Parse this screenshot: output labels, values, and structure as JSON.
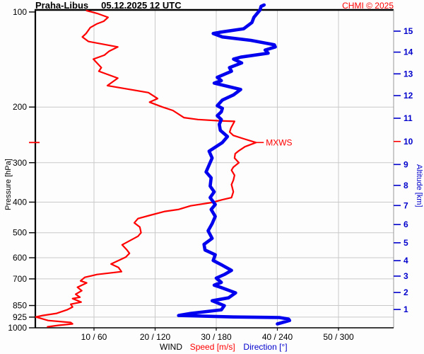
{
  "header": {
    "station": "Praha-Libus",
    "datetime": "05.12.2025 12 UTC",
    "copyright": "CHMI © 2025"
  },
  "legend": {
    "wind": "WIND",
    "speed": "Speed [m/s]",
    "direction": "Direction [°]"
  },
  "colors": {
    "speed_line": "#ff0000",
    "direction_line": "#0000ee",
    "pressure_text": "#000000",
    "altitude_text": "#0000cc",
    "grid": "#c9c9c9",
    "border": "#000000",
    "copyright": "#ff0000",
    "mxws": "#ff0000"
  },
  "chart_data": {
    "type": "line",
    "title": "Praha-Libus 05.12.2025 12 UTC",
    "ylabel": "Pressure [hPa]",
    "y2label": "Altitude [km]",
    "xlabel": "WIND Speed [m/s] / Direction [°]",
    "y_scale": "log-inverted",
    "x_tick_labels": [
      "10 / 60",
      "20 / 120",
      "30 / 180",
      "40 / 240",
      "50 / 300"
    ],
    "speed_ticks": [
      10,
      20,
      30,
      40,
      50
    ],
    "direction_ticks": [
      60,
      120,
      180,
      240,
      300
    ],
    "speed_range": [
      0,
      59
    ],
    "direction_range": [
      0,
      354
    ],
    "pressure_ticks": [
      100,
      200,
      300,
      400,
      500,
      600,
      700,
      850,
      925,
      1000
    ],
    "pressure_grid": [
      200,
      300,
      400,
      500,
      600,
      700,
      850,
      925
    ],
    "altitude_ticks": [
      {
        "km": 1,
        "p": 875
      },
      {
        "km": 2,
        "p": 773
      },
      {
        "km": 3,
        "p": 686
      },
      {
        "km": 4,
        "p": 613
      },
      {
        "km": 5,
        "p": 538
      },
      {
        "km": 6,
        "p": 471
      },
      {
        "km": 7,
        "p": 410
      },
      {
        "km": 8,
        "p": 354
      },
      {
        "km": 9,
        "p": 304
      },
      {
        "km": 10,
        "p": 257
      },
      {
        "km": 11,
        "p": 217
      },
      {
        "km": 12,
        "p": 184
      },
      {
        "km": 13,
        "p": 157
      },
      {
        "km": 14,
        "p": 134
      },
      {
        "km": 15,
        "p": 115
      }
    ],
    "mxws": {
      "label": "MXWS",
      "pressure": 259,
      "speed": 36.5,
      "highlight_km": 10
    },
    "series": [
      {
        "name": "Speed [m/s]",
        "axis": "speed",
        "color": "#ff0000",
        "width": 2.2,
        "points": [
          [
            99,
            8.8
          ],
          [
            101,
            10.5
          ],
          [
            104,
            12.3
          ],
          [
            107,
            11.6
          ],
          [
            109,
            10.5
          ],
          [
            112,
            9.4
          ],
          [
            117,
            8.7
          ],
          [
            120,
            8.1
          ],
          [
            124,
            9.1
          ],
          [
            129,
            13.9
          ],
          [
            133,
            12.5
          ],
          [
            137,
            11.7
          ],
          [
            141,
            9.9
          ],
          [
            150,
            11.2
          ],
          [
            154,
            10.8
          ],
          [
            162,
            13.9
          ],
          [
            171,
            12.2
          ],
          [
            180,
            18.9
          ],
          [
            188,
            20.4
          ],
          [
            193,
            19.1
          ],
          [
            200,
            21.2
          ],
          [
            205,
            22.9
          ],
          [
            216,
            24.7
          ],
          [
            219,
            27.0
          ],
          [
            221,
            30.5
          ],
          [
            222,
            33.0
          ],
          [
            233,
            32.4
          ],
          [
            240,
            32.2
          ],
          [
            246,
            32.8
          ],
          [
            252,
            34.5
          ],
          [
            259,
            36.5
          ],
          [
            267,
            34.7
          ],
          [
            276,
            33.6
          ],
          [
            281,
            33.1
          ],
          [
            290,
            33.0
          ],
          [
            300,
            33.7
          ],
          [
            310,
            32.8
          ],
          [
            317,
            32.5
          ],
          [
            329,
            33.0
          ],
          [
            341,
            32.8
          ],
          [
            352,
            32.5
          ],
          [
            371,
            32.8
          ],
          [
            387,
            32.5
          ],
          [
            393,
            31.0
          ],
          [
            401,
            29.3
          ],
          [
            411,
            25.8
          ],
          [
            422,
            23.8
          ],
          [
            428,
            21.6
          ],
          [
            440,
            19.2
          ],
          [
            451,
            17.2
          ],
          [
            465,
            16.6
          ],
          [
            480,
            17.5
          ],
          [
            500,
            17.7
          ],
          [
            513,
            17.2
          ],
          [
            546,
            14.6
          ],
          [
            567,
            15.4
          ],
          [
            581,
            15.8
          ],
          [
            597,
            15.2
          ],
          [
            628,
            12.8
          ],
          [
            644,
            14.0
          ],
          [
            664,
            14.5
          ],
          [
            678,
            10.5
          ],
          [
            692,
            8.5
          ],
          [
            710,
            7.8
          ],
          [
            721,
            8.8
          ],
          [
            744,
            7.3
          ],
          [
            763,
            8.0
          ],
          [
            783,
            7.0
          ],
          [
            800,
            7.7
          ],
          [
            808,
            6.5
          ],
          [
            829,
            7.9
          ],
          [
            842,
            6.2
          ],
          [
            859,
            6.5
          ],
          [
            877,
            5.6
          ],
          [
            900,
            3.9
          ],
          [
            914,
            1.6
          ],
          [
            924,
            0.5
          ],
          [
            948,
            2.5
          ],
          [
            962,
            6.2
          ],
          [
            972,
            6.5
          ],
          [
            982,
            4.2
          ],
          [
            993,
            2.4
          ]
        ]
      },
      {
        "name": "Direction [°]",
        "axis": "direction",
        "color": "#0000ee",
        "width": 4.6,
        "points": [
          [
            95,
            227
          ],
          [
            96,
            224
          ],
          [
            98.5,
            223
          ],
          [
            104,
            217
          ],
          [
            108,
            215
          ],
          [
            113,
            207
          ],
          [
            116,
            183
          ],
          [
            117,
            177
          ],
          [
            120,
            186
          ],
          [
            123,
            214
          ],
          [
            127,
            237
          ],
          [
            129,
            238
          ],
          [
            132,
            228
          ],
          [
            135,
            231
          ],
          [
            139,
            204
          ],
          [
            141,
            197
          ],
          [
            145,
            205
          ],
          [
            150,
            193
          ],
          [
            154,
            195
          ],
          [
            161,
            181
          ],
          [
            165,
            185
          ],
          [
            168,
            178
          ],
          [
            176,
            204
          ],
          [
            183,
            197
          ],
          [
            190,
            186
          ],
          [
            198,
            181
          ],
          [
            202,
            186
          ],
          [
            207,
            185
          ],
          [
            213,
            181
          ],
          [
            219,
            185
          ],
          [
            227,
            183
          ],
          [
            237,
            184
          ],
          [
            248,
            191
          ],
          [
            259,
            186
          ],
          [
            276,
            173
          ],
          [
            290,
            176
          ],
          [
            305,
            173
          ],
          [
            321,
            170
          ],
          [
            335,
            175
          ],
          [
            356,
            174
          ],
          [
            371,
            178
          ],
          [
            387,
            174
          ],
          [
            407,
            179
          ],
          [
            422,
            175
          ],
          [
            444,
            179
          ],
          [
            468,
            176
          ],
          [
            493,
            172
          ],
          [
            521,
            176
          ],
          [
            544,
            168
          ],
          [
            567,
            169
          ],
          [
            587,
            179
          ],
          [
            612,
            177
          ],
          [
            634,
            186
          ],
          [
            658,
            195
          ],
          [
            678,
            188
          ],
          [
            696,
            180
          ],
          [
            718,
            185
          ],
          [
            733,
            178
          ],
          [
            744,
            184
          ],
          [
            775,
            199
          ],
          [
            804,
            192
          ],
          [
            821,
            176
          ],
          [
            851,
            188
          ],
          [
            877,
            185
          ],
          [
            900,
            155
          ],
          [
            914,
            143
          ],
          [
            924,
            197
          ],
          [
            928,
            242
          ],
          [
            938,
            251
          ],
          [
            948,
            252
          ],
          [
            962,
            245
          ],
          [
            972,
            240
          ]
        ]
      }
    ]
  }
}
